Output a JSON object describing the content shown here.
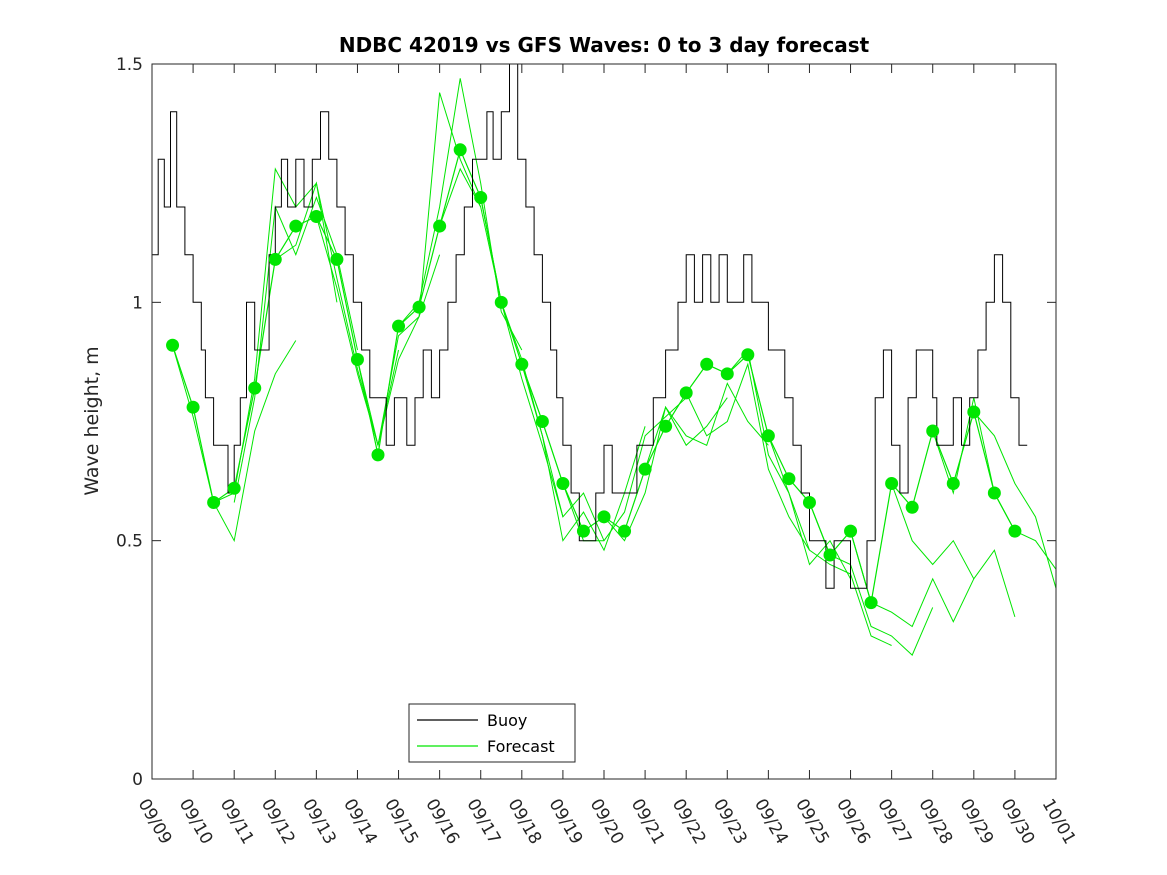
{
  "chart_data": {
    "type": "line",
    "title": "NDBC 42019 vs GFS Waves: 0 to 3 day forecast",
    "xlabel": "",
    "ylabel": "Wave height, m",
    "ylim": [
      0,
      1.5
    ],
    "xlim": [
      0,
      22
    ],
    "yticks": [
      0,
      0.5,
      1,
      1.5
    ],
    "ytick_labels": [
      "0",
      "0.5",
      "1",
      "1.5"
    ],
    "xtick_labels": [
      "09/09",
      "09/10",
      "09/11",
      "09/12",
      "09/13",
      "09/14",
      "09/15",
      "09/16",
      "09/17",
      "09/18",
      "09/19",
      "09/20",
      "09/21",
      "09/22",
      "09/23",
      "09/24",
      "09/25",
      "09/26",
      "09/27",
      "09/28",
      "09/29",
      "09/30",
      "10/01"
    ],
    "colors": {
      "buoy": "#000000",
      "forecast": "#00e600",
      "axes": "#262626"
    },
    "legend": {
      "position": "lower-center",
      "entries": [
        "Buoy",
        "Forecast"
      ]
    },
    "buoy": {
      "name": "Buoy",
      "x": [
        0,
        0.15,
        0.3,
        0.45,
        0.6,
        0.8,
        1.0,
        1.2,
        1.3,
        1.5,
        1.7,
        1.85,
        2.0,
        2.15,
        2.3,
        2.5,
        2.7,
        2.85,
        3.0,
        3.15,
        3.3,
        3.5,
        3.7,
        3.9,
        4.1,
        4.3,
        4.5,
        4.7,
        4.9,
        5.1,
        5.3,
        5.5,
        5.7,
        5.9,
        6.0,
        6.2,
        6.4,
        6.6,
        6.8,
        7.0,
        7.2,
        7.4,
        7.6,
        7.8,
        8.0,
        8.15,
        8.3,
        8.5,
        8.7,
        8.9,
        9.1,
        9.3,
        9.5,
        9.7,
        9.85,
        10.0,
        10.2,
        10.4,
        10.6,
        10.8,
        11.0,
        11.2,
        11.5,
        11.8,
        12.0,
        12.2,
        12.5,
        12.8,
        13.0,
        13.2,
        13.4,
        13.6,
        13.8,
        14.0,
        14.2,
        14.4,
        14.6,
        14.8,
        15.0,
        15.2,
        15.4,
        15.6,
        15.8,
        16.0,
        16.2,
        16.4,
        16.6,
        16.8,
        17.0,
        17.2,
        17.4,
        17.6,
        17.8,
        18.0,
        18.2,
        18.4,
        18.6,
        18.8,
        19.0,
        19.1,
        19.3,
        19.5,
        19.7,
        19.9,
        20.1,
        20.3,
        20.5,
        20.7,
        20.9,
        21.1,
        21.3
      ],
      "values": [
        1.1,
        1.3,
        1.2,
        1.4,
        1.2,
        1.1,
        1.0,
        0.9,
        0.8,
        0.7,
        0.7,
        0.6,
        0.7,
        0.8,
        1.0,
        0.9,
        0.9,
        1.1,
        1.2,
        1.3,
        1.2,
        1.3,
        1.2,
        1.3,
        1.4,
        1.3,
        1.2,
        1.1,
        1.0,
        0.9,
        0.8,
        0.8,
        0.7,
        0.8,
        0.8,
        0.7,
        0.8,
        0.9,
        0.8,
        0.9,
        1.0,
        1.1,
        1.2,
        1.3,
        1.3,
        1.4,
        1.3,
        1.4,
        1.5,
        1.3,
        1.2,
        1.1,
        1.0,
        0.9,
        0.8,
        0.7,
        0.6,
        0.5,
        0.5,
        0.6,
        0.7,
        0.6,
        0.6,
        0.7,
        0.7,
        0.8,
        0.9,
        1.0,
        1.1,
        1.0,
        1.1,
        1.0,
        1.1,
        1.0,
        1.0,
        1.1,
        1.0,
        1.0,
        0.9,
        0.9,
        0.8,
        0.7,
        0.6,
        0.5,
        0.5,
        0.4,
        0.5,
        0.5,
        0.4,
        0.4,
        0.5,
        0.8,
        0.9,
        0.7,
        0.6,
        0.8,
        0.9,
        0.9,
        0.8,
        0.7,
        0.7,
        0.8,
        0.7,
        0.8,
        0.9,
        1.0,
        1.1,
        1.0,
        0.8,
        0.7,
        0.7
      ]
    },
    "forecast_analysis": {
      "name": "Forecast",
      "x": [
        0.5,
        1.0,
        1.5,
        2.0,
        2.5,
        3.0,
        3.5,
        4.0,
        4.5,
        5.0,
        5.5,
        6.0,
        6.5,
        7.0,
        7.5,
        8.0,
        8.5,
        9.0,
        9.5,
        10.0,
        10.5,
        11.0,
        11.5,
        12.0,
        12.5,
        13.0,
        13.5,
        14.0,
        14.5,
        15.0,
        15.5,
        16.0,
        16.5,
        17.0,
        17.5,
        18.0,
        18.5,
        19.0,
        19.5,
        20.0,
        20.5,
        21.0
      ],
      "values": [
        0.91,
        0.78,
        0.58,
        0.61,
        0.82,
        1.09,
        1.16,
        1.18,
        1.09,
        0.88,
        0.68,
        0.95,
        0.99,
        1.16,
        1.32,
        1.22,
        1.0,
        0.87,
        0.75,
        0.62,
        0.52,
        0.55,
        0.52,
        0.65,
        0.74,
        0.81,
        0.87,
        0.85,
        0.89,
        0.72,
        0.63,
        0.58,
        0.47,
        0.52,
        0.37,
        0.62,
        0.57,
        0.73,
        0.62,
        0.77,
        0.6,
        0.52
      ]
    },
    "forecast_runs": [
      {
        "name": "Forecast",
        "x": [
          0.5,
          1.0,
          1.5,
          2.0,
          2.5,
          3.0,
          3.5
        ],
        "values": [
          0.91,
          0.76,
          0.58,
          0.5,
          0.73,
          0.85,
          0.92
        ]
      },
      {
        "name": "Forecast",
        "x": [
          1.5,
          2.0,
          2.5,
          3.0,
          3.5,
          4.0,
          4.5
        ],
        "values": [
          0.58,
          0.6,
          0.84,
          1.28,
          1.2,
          1.25,
          1.0
        ]
      },
      {
        "name": "Forecast",
        "x": [
          2.0,
          2.5,
          3.0,
          3.5,
          4.0,
          4.5,
          5.0
        ],
        "values": [
          0.58,
          0.8,
          1.2,
          1.1,
          1.22,
          1.1,
          0.9
        ]
      },
      {
        "name": "Forecast",
        "x": [
          3.0,
          3.5,
          4.0,
          4.5,
          5.0,
          5.5,
          6.0
        ],
        "values": [
          1.09,
          1.12,
          1.25,
          1.05,
          0.86,
          0.7,
          0.9
        ]
      },
      {
        "name": "Forecast",
        "x": [
          4.0,
          4.5,
          5.0,
          5.5,
          6.0,
          6.5,
          7.0
        ],
        "values": [
          1.18,
          1.03,
          0.85,
          0.7,
          0.88,
          0.97,
          1.1
        ]
      },
      {
        "name": "Forecast",
        "x": [
          5.0,
          5.5,
          6.0,
          6.5,
          7.0,
          7.5,
          8.0
        ],
        "values": [
          0.88,
          0.7,
          0.93,
          0.97,
          1.44,
          1.3,
          1.2
        ]
      },
      {
        "name": "Forecast",
        "x": [
          6.0,
          6.5,
          7.0,
          7.5,
          8.0,
          8.5,
          9.0
        ],
        "values": [
          0.95,
          1.0,
          1.2,
          1.47,
          1.25,
          0.98,
          0.9
        ]
      },
      {
        "name": "Forecast",
        "x": [
          7.0,
          7.5,
          8.0,
          8.5,
          9.0,
          9.5,
          10.0
        ],
        "values": [
          1.16,
          1.28,
          1.2,
          1.0,
          0.84,
          0.7,
          0.55
        ]
      },
      {
        "name": "Forecast",
        "x": [
          8.0,
          8.5,
          9.0,
          9.5,
          10.0,
          10.5,
          11.0
        ],
        "values": [
          1.22,
          1.0,
          0.88,
          0.72,
          0.55,
          0.6,
          0.5
        ]
      },
      {
        "name": "Forecast",
        "x": [
          9.0,
          9.5,
          10.0,
          10.5,
          11.0,
          11.5,
          12.0
        ],
        "values": [
          0.87,
          0.72,
          0.5,
          0.56,
          0.48,
          0.6,
          0.74
        ]
      },
      {
        "name": "Forecast",
        "x": [
          10.0,
          10.5,
          11.0,
          11.5,
          12.0,
          12.5,
          13.0
        ],
        "values": [
          0.62,
          0.5,
          0.5,
          0.56,
          0.72,
          0.76,
          0.8
        ]
      },
      {
        "name": "Forecast",
        "x": [
          11.0,
          11.5,
          12.0,
          12.5,
          13.0,
          13.5,
          14.0
        ],
        "values": [
          0.55,
          0.5,
          0.6,
          0.78,
          0.7,
          0.74,
          0.8
        ]
      },
      {
        "name": "Forecast",
        "x": [
          12.0,
          12.5,
          13.0,
          13.5,
          14.0,
          14.5,
          15.0
        ],
        "values": [
          0.65,
          0.78,
          0.72,
          0.7,
          0.83,
          0.75,
          0.7
        ]
      },
      {
        "name": "Forecast",
        "x": [
          13.0,
          13.5,
          14.0,
          14.5,
          15.0,
          15.5,
          16.0
        ],
        "values": [
          0.81,
          0.72,
          0.75,
          0.87,
          0.65,
          0.55,
          0.48
        ]
      },
      {
        "name": "Forecast",
        "x": [
          14.0,
          14.5,
          15.0,
          15.5,
          16.0,
          16.5,
          17.0
        ],
        "values": [
          0.85,
          0.9,
          0.68,
          0.6,
          0.45,
          0.5,
          0.42
        ]
      },
      {
        "name": "Forecast",
        "x": [
          15.0,
          15.5,
          16.0,
          16.5,
          17.0,
          17.5,
          18.0
        ],
        "values": [
          0.72,
          0.6,
          0.48,
          0.45,
          0.43,
          0.3,
          0.28
        ]
      },
      {
        "name": "Forecast",
        "x": [
          16.0,
          16.5,
          17.0,
          17.5,
          18.0,
          18.5,
          19.0
        ],
        "values": [
          0.58,
          0.47,
          0.45,
          0.32,
          0.3,
          0.26,
          0.36
        ]
      },
      {
        "name": "Forecast",
        "x": [
          17.0,
          17.5,
          18.0,
          18.5,
          19.0,
          19.5,
          20.0
        ],
        "values": [
          0.52,
          0.37,
          0.35,
          0.32,
          0.42,
          0.33,
          0.42
        ]
      },
      {
        "name": "Forecast",
        "x": [
          18.0,
          18.5,
          19.0,
          19.5,
          20.0,
          20.5,
          21.0
        ],
        "values": [
          0.62,
          0.5,
          0.45,
          0.5,
          0.42,
          0.48,
          0.34
        ]
      },
      {
        "name": "Forecast",
        "x": [
          19.0,
          19.5,
          20.0,
          20.5,
          21.0,
          21.5,
          22.0
        ],
        "values": [
          0.73,
          0.6,
          0.8,
          0.6,
          0.52,
          0.5,
          0.44
        ]
      },
      {
        "name": "Forecast",
        "x": [
          20.0,
          20.5,
          21.0,
          21.5,
          22.0
        ],
        "values": [
          0.77,
          0.72,
          0.62,
          0.55,
          0.4
        ]
      }
    ]
  }
}
